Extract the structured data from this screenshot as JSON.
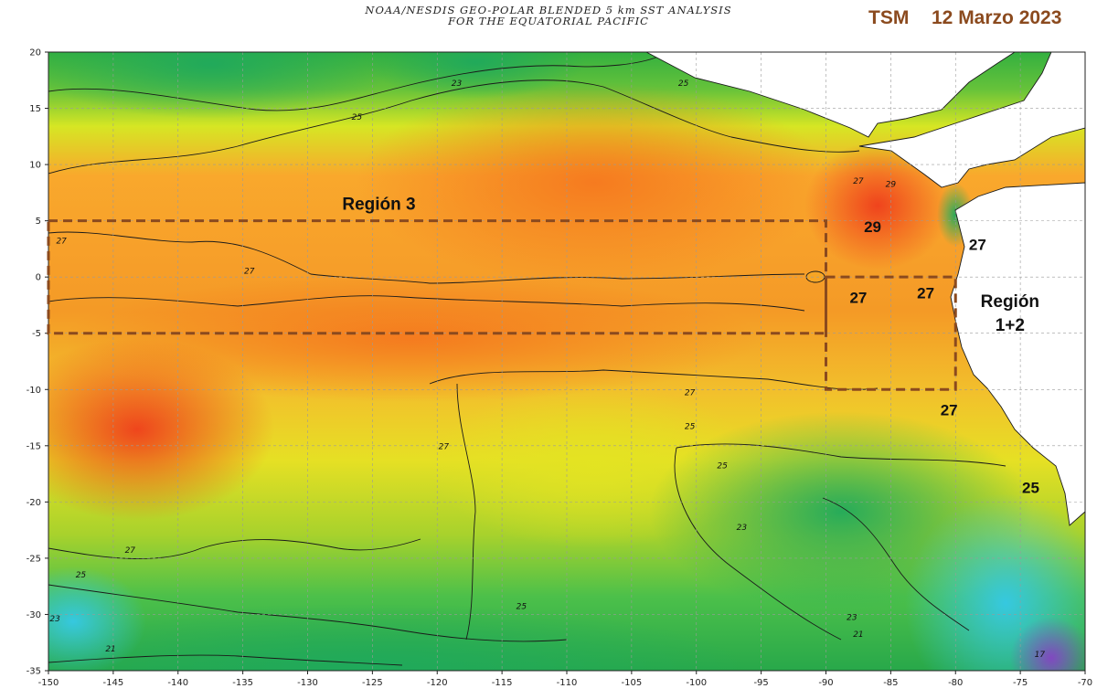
{
  "header": {
    "line1": "NOAA/NESDIS GEO-POLAR BLENDED 5 km SST ANALYSIS",
    "line2": "FOR THE EQUATORIAL PACIFIC",
    "variable": "TSM",
    "date": "12 Marzo 2023"
  },
  "axes": {
    "lon_range": [
      -150,
      -70
    ],
    "lat_range": [
      -35,
      20
    ],
    "x_ticks": [
      "-150",
      "-145",
      "-140",
      "-135",
      "-130",
      "-125",
      "-120",
      "-115",
      "-110",
      "-105",
      "-100",
      "-95",
      "-90",
      "-85",
      "-80",
      "-75",
      "-70"
    ],
    "y_ticks": [
      "20",
      "15",
      "10",
      "5",
      "0",
      "-5",
      "-10",
      "-15",
      "-20",
      "-25",
      "-30",
      "-35"
    ],
    "grid": true
  },
  "regions": [
    {
      "label": "Región 3",
      "lon": [
        -150,
        -90
      ],
      "lat": [
        -5,
        5
      ],
      "label_lon": -124.5,
      "label_lat": 6
    },
    {
      "label_lines": [
        "Región",
        "1+2"
      ],
      "lon": [
        -90,
        -80
      ],
      "lat": [
        -10,
        0
      ],
      "label_lon": -76.5,
      "label_lat": -2.5
    }
  ],
  "region_label_1": "Región 3",
  "region_label_2a": "Región",
  "region_label_2b": "1+2",
  "annotations": [
    {
      "text": "29",
      "lon": -86.4,
      "lat": 4
    },
    {
      "text": "27",
      "lon": -78.3,
      "lat": 2.4
    },
    {
      "text": "27",
      "lon": -87.5,
      "lat": -2.3
    },
    {
      "text": "27",
      "lon": -82.3,
      "lat": -1.9
    },
    {
      "text": "27",
      "lon": -80.5,
      "lat": -12.3
    },
    {
      "text": "25",
      "lon": -74.2,
      "lat": -19.2
    }
  ],
  "contour_labels": [
    {
      "text": "27",
      "lon": -149,
      "lat": 3
    },
    {
      "text": "27",
      "lon": -134.5,
      "lat": 0.3
    },
    {
      "text": "27",
      "lon": -143.7,
      "lat": -24.5
    },
    {
      "text": "25",
      "lon": -147.5,
      "lat": -26.7
    },
    {
      "text": "23",
      "lon": -149.5,
      "lat": -30.6
    },
    {
      "text": "21",
      "lon": -145.2,
      "lat": -33.3
    },
    {
      "text": "25",
      "lon": -126.2,
      "lat": 14
    },
    {
      "text": "23",
      "lon": -118.5,
      "lat": 17
    },
    {
      "text": "25",
      "lon": -101,
      "lat": 17
    },
    {
      "text": "27",
      "lon": -119.5,
      "lat": -15.3
    },
    {
      "text": "27",
      "lon": -100.5,
      "lat": -10.5
    },
    {
      "text": "25",
      "lon": -100.5,
      "lat": -13.5
    },
    {
      "text": "25",
      "lon": -98,
      "lat": -17
    },
    {
      "text": "23",
      "lon": -96.5,
      "lat": -22.5
    },
    {
      "text": "25",
      "lon": -113.5,
      "lat": -29.5
    },
    {
      "text": "23",
      "lon": -88,
      "lat": -30.5
    },
    {
      "text": "21",
      "lon": -87.5,
      "lat": -32
    },
    {
      "text": "17",
      "lon": -73.5,
      "lat": -33.8
    },
    {
      "text": "29",
      "lon": -85,
      "lat": 8
    },
    {
      "text": "27",
      "lon": -87.5,
      "lat": 8.3
    }
  ]
}
